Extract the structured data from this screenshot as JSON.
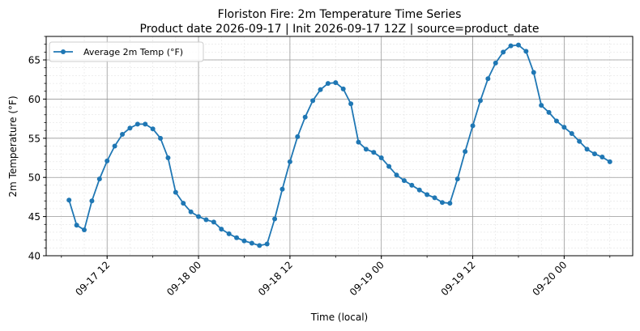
{
  "chart_data": {
    "type": "line",
    "title": "Floriston Fire: 2m Temperature Time Series",
    "subtitle": "Product date 2026-09-17 | Init 2026-09-17 12Z | source=product_date",
    "xlabel": "Time (local)",
    "ylabel": "2m Temperature (°F)",
    "ylim": [
      40,
      68
    ],
    "yticks": [
      40,
      45,
      50,
      55,
      60,
      65
    ],
    "xlim": [
      "2026-09-17 04:00",
      "2026-09-20 09:00"
    ],
    "xticks": [
      {
        "value": "2026-09-17 12:00",
        "label": "09-17 12"
      },
      {
        "value": "2026-09-18 00:00",
        "label": "09-18 00"
      },
      {
        "value": "2026-09-18 12:00",
        "label": "09-18 12"
      },
      {
        "value": "2026-09-19 00:00",
        "label": "09-19 00"
      },
      {
        "value": "2026-09-19 12:00",
        "label": "09-19 12"
      },
      {
        "value": "2026-09-20 00:00",
        "label": "09-20 00"
      }
    ],
    "grid": true,
    "legend_position": "top-left",
    "series": [
      {
        "name": "Average 2m Temp (°F)",
        "color": "#1f77b4",
        "x": [
          "2026-09-17 07:00",
          "2026-09-17 08:00",
          "2026-09-17 09:00",
          "2026-09-17 10:00",
          "2026-09-17 11:00",
          "2026-09-17 12:00",
          "2026-09-17 13:00",
          "2026-09-17 14:00",
          "2026-09-17 15:00",
          "2026-09-17 16:00",
          "2026-09-17 17:00",
          "2026-09-17 18:00",
          "2026-09-17 19:00",
          "2026-09-17 20:00",
          "2026-09-17 21:00",
          "2026-09-17 22:00",
          "2026-09-17 23:00",
          "2026-09-18 00:00",
          "2026-09-18 01:00",
          "2026-09-18 02:00",
          "2026-09-18 03:00",
          "2026-09-18 04:00",
          "2026-09-18 05:00",
          "2026-09-18 06:00",
          "2026-09-18 07:00",
          "2026-09-18 08:00",
          "2026-09-18 09:00",
          "2026-09-18 10:00",
          "2026-09-18 11:00",
          "2026-09-18 12:00",
          "2026-09-18 13:00",
          "2026-09-18 14:00",
          "2026-09-18 15:00",
          "2026-09-18 16:00",
          "2026-09-18 17:00",
          "2026-09-18 18:00",
          "2026-09-18 19:00",
          "2026-09-18 20:00",
          "2026-09-18 21:00",
          "2026-09-18 22:00",
          "2026-09-18 23:00",
          "2026-09-19 00:00",
          "2026-09-19 01:00",
          "2026-09-19 02:00",
          "2026-09-19 03:00",
          "2026-09-19 04:00",
          "2026-09-19 05:00",
          "2026-09-19 06:00",
          "2026-09-19 07:00",
          "2026-09-19 08:00",
          "2026-09-19 09:00",
          "2026-09-19 10:00",
          "2026-09-19 11:00",
          "2026-09-19 12:00",
          "2026-09-19 13:00",
          "2026-09-19 14:00",
          "2026-09-19 15:00",
          "2026-09-19 16:00",
          "2026-09-19 17:00",
          "2026-09-19 18:00",
          "2026-09-19 19:00",
          "2026-09-19 20:00",
          "2026-09-19 21:00",
          "2026-09-19 22:00",
          "2026-09-19 23:00",
          "2026-09-20 00:00",
          "2026-09-20 01:00",
          "2026-09-20 02:00",
          "2026-09-20 03:00",
          "2026-09-20 04:00",
          "2026-09-20 05:00",
          "2026-09-20 06:00"
        ],
        "y": [
          47.1,
          43.9,
          43.3,
          47.0,
          49.8,
          52.1,
          54.0,
          55.5,
          56.3,
          56.8,
          56.8,
          56.2,
          55.0,
          52.5,
          48.1,
          46.7,
          45.6,
          45.0,
          44.6,
          44.3,
          43.4,
          42.8,
          42.3,
          41.9,
          41.6,
          41.3,
          41.5,
          44.7,
          48.5,
          52.0,
          55.2,
          57.7,
          59.8,
          61.2,
          62.0,
          62.1,
          61.3,
          59.4,
          54.5,
          53.6,
          53.2,
          52.5,
          51.4,
          50.3,
          49.6,
          49.0,
          48.4,
          47.8,
          47.4,
          46.8,
          46.7,
          49.8,
          53.3,
          56.6,
          59.8,
          62.6,
          64.6,
          66.0,
          66.8,
          66.9,
          66.1,
          63.4,
          59.2,
          58.3,
          57.2,
          56.4,
          55.6,
          54.6,
          53.6,
          53.0,
          52.6,
          52.0
        ]
      }
    ]
  }
}
